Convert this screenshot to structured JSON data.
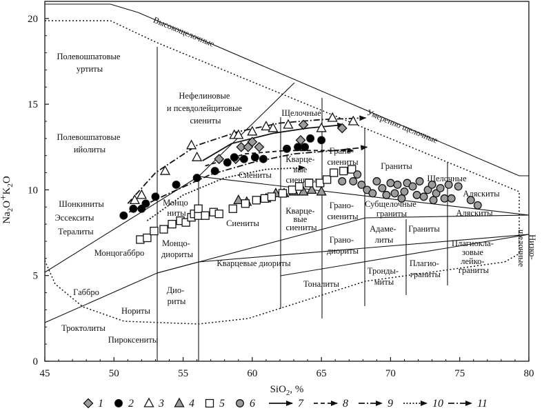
{
  "chart_data": {
    "type": "scatter",
    "xlabel": "SiO",
    "xlabel_sub": "2",
    "xlabel_suffix": ", %",
    "ylabel": {
      "p1": "Na",
      "s1": "2",
      "p2": "O",
      "plus": "+",
      "p3": "K",
      "s2": "2",
      "p4": "O"
    },
    "xlim": [
      45,
      80
    ],
    "ylim": [
      0,
      21
    ],
    "x_ticks": [
      45,
      50,
      55,
      60,
      65,
      70,
      75,
      80
    ],
    "y_ticks": [
      0,
      5,
      10,
      15,
      20
    ],
    "series": [
      {
        "name": "1",
        "marker": "diamond",
        "fill": "#9c9c9c",
        "points": [
          [
            57.6,
            11.8
          ],
          [
            58.8,
            11.8
          ],
          [
            59.2,
            12.5
          ],
          [
            59.7,
            12.5
          ],
          [
            60.0,
            12.8
          ],
          [
            60.5,
            12.5
          ],
          [
            63.5,
            12.9
          ],
          [
            63.7,
            13.8
          ],
          [
            66.5,
            13.6
          ]
        ]
      },
      {
        "name": "2",
        "marker": "circle",
        "fill": "#000000",
        "points": [
          [
            50.7,
            8.5
          ],
          [
            51.4,
            8.9
          ],
          [
            52.0,
            8.9
          ],
          [
            52.3,
            9.2
          ],
          [
            53.0,
            9.6
          ],
          [
            54.5,
            10.3
          ],
          [
            56.0,
            10.7
          ],
          [
            57.3,
            11.1
          ],
          [
            58.2,
            11.6
          ],
          [
            58.7,
            11.9
          ],
          [
            59.4,
            11.8
          ],
          [
            60.2,
            11.9
          ],
          [
            60.8,
            11.8
          ],
          [
            62.5,
            12.4
          ],
          [
            63.3,
            12.5
          ],
          [
            63.8,
            12.5
          ],
          [
            64.2,
            13.0
          ],
          [
            65.0,
            12.9
          ]
        ]
      },
      {
        "name": "3",
        "marker": "triangle",
        "fill": "#ffffff",
        "points": [
          [
            51.5,
            9.4
          ],
          [
            52.0,
            9.7
          ],
          [
            53.7,
            11.1
          ],
          [
            55.6,
            12.6
          ],
          [
            56.0,
            11.9
          ],
          [
            58.7,
            13.2
          ],
          [
            59.0,
            13.2
          ],
          [
            60.0,
            13.4
          ],
          [
            61.0,
            13.7
          ],
          [
            61.5,
            13.6
          ],
          [
            62.6,
            13.8
          ],
          [
            65.0,
            13.6
          ],
          [
            65.8,
            14.2
          ],
          [
            67.3,
            14.0
          ]
        ]
      },
      {
        "name": "4",
        "marker": "triangle",
        "fill": "#9c9c9c",
        "points": [
          [
            59.0,
            9.4
          ],
          [
            59.6,
            9.3
          ],
          [
            61.0,
            9.5
          ],
          [
            61.7,
            9.8
          ],
          [
            62.3,
            9.8
          ],
          [
            63.0,
            9.9
          ],
          [
            63.7,
            9.9
          ],
          [
            64.3,
            10.0
          ],
          [
            65.0,
            9.9
          ]
        ]
      },
      {
        "name": "5",
        "marker": "square",
        "fill": "#ffffff",
        "points": [
          [
            51.9,
            7.1
          ],
          [
            52.4,
            7.2
          ],
          [
            52.9,
            7.6
          ],
          [
            53.6,
            7.7
          ],
          [
            54.2,
            8.0
          ],
          [
            54.8,
            8.2
          ],
          [
            55.2,
            8.1
          ],
          [
            55.6,
            8.4
          ],
          [
            55.8,
            8.6
          ],
          [
            56.1,
            8.5
          ],
          [
            56.1,
            8.9
          ],
          [
            56.6,
            8.5
          ],
          [
            57.2,
            8.7
          ],
          [
            57.6,
            8.6
          ],
          [
            58.6,
            8.9
          ],
          [
            59.5,
            9.2
          ],
          [
            60.3,
            9.4
          ],
          [
            60.9,
            9.5
          ],
          [
            61.4,
            9.6
          ],
          [
            62.2,
            9.8
          ],
          [
            62.9,
            10.0
          ],
          [
            63.4,
            10.2
          ],
          [
            64.1,
            10.4
          ],
          [
            64.9,
            10.4
          ],
          [
            65.4,
            10.6
          ],
          [
            65.9,
            11.0
          ],
          [
            66.6,
            11.1
          ],
          [
            67.2,
            11.2
          ]
        ]
      },
      {
        "name": "6",
        "marker": "circle",
        "fill": "#9c9c9c",
        "points": [
          [
            66.5,
            10.5
          ],
          [
            67.3,
            10.5
          ],
          [
            67.6,
            10.9
          ],
          [
            67.9,
            10.3
          ],
          [
            68.3,
            10.0
          ],
          [
            68.7,
            9.8
          ],
          [
            69.0,
            10.5
          ],
          [
            69.4,
            10.1
          ],
          [
            69.7,
            9.7
          ],
          [
            70.0,
            10.4
          ],
          [
            70.3,
            9.8
          ],
          [
            70.5,
            10.3
          ],
          [
            70.8,
            9.5
          ],
          [
            71.0,
            9.9
          ],
          [
            71.2,
            10.4
          ],
          [
            71.6,
            10.2
          ],
          [
            71.9,
            9.7
          ],
          [
            72.1,
            10.5
          ],
          [
            72.4,
            9.6
          ],
          [
            72.7,
            10.0
          ],
          [
            73.0,
            10.3
          ],
          [
            73.1,
            9.4
          ],
          [
            73.3,
            9.8
          ],
          [
            73.6,
            10.1
          ],
          [
            73.9,
            9.5
          ],
          [
            74.2,
            10.3
          ],
          [
            74.4,
            9.5
          ],
          [
            74.9,
            10.2
          ],
          [
            75.8,
            9.4
          ],
          [
            76.3,
            9.1
          ]
        ]
      }
    ],
    "trends": [
      {
        "name": "7",
        "style": "solid",
        "points": [
          [
            56.4,
            11.7
          ],
          [
            58.5,
            12.7
          ],
          [
            61.5,
            13.3
          ],
          [
            64.0,
            13.6
          ],
          [
            66.6,
            13.8
          ]
        ]
      },
      {
        "name": "8",
        "style": "dashed",
        "points": [
          [
            56.6,
            11.4
          ],
          [
            59.5,
            12.1
          ],
          [
            62.5,
            12.3
          ],
          [
            65.0,
            12.3
          ],
          [
            67.3,
            12.3
          ]
        ]
      },
      {
        "name": "9",
        "style": "dashdot",
        "points": [
          [
            51.0,
            9.2
          ],
          [
            53.0,
            11.0
          ],
          [
            56.0,
            12.6
          ],
          [
            59.0,
            13.4
          ],
          [
            62.0,
            13.9
          ],
          [
            65.0,
            14.1
          ],
          [
            68.2,
            14.2
          ]
        ]
      },
      {
        "name": "10",
        "style": "dotted",
        "points": [
          [
            52.4,
            8.2
          ],
          [
            55.0,
            9.7
          ],
          [
            58.0,
            10.7
          ],
          [
            61.0,
            11.2
          ],
          [
            63.8,
            11.3
          ]
        ]
      },
      {
        "name": "11",
        "style": "dashdot",
        "points": [
          [
            51.1,
            8.7
          ],
          [
            54.0,
            9.8
          ],
          [
            57.0,
            10.9
          ],
          [
            60.0,
            11.6
          ],
          [
            63.0,
            12.1
          ],
          [
            66.0,
            12.3
          ],
          [
            68.3,
            12.5
          ]
        ]
      }
    ],
    "field_labels": {
      "polevosh_urtity": [
        "Полевошпатовые",
        "уртиты"
      ],
      "polevosh_ijolity": [
        "Полевошпатовые",
        "ийолиты"
      ],
      "nefelinovye": [
        "Нефелиновые",
        "и псевдолейцитовые",
        "сиениты"
      ],
      "vysokoshchel": "Высокощелочные",
      "umerenno": "Умеренно щелочные",
      "nizkoshchel": [
        "Низко-",
        "щелочные"
      ],
      "shchel_a": "Щелочные",
      "shchel_b": "Щелочные",
      "kvarts_sien_a": [
        "Кварце-",
        "вые",
        "сиениты"
      ],
      "kvarts_sien_b": [
        "Кварце-",
        "вые",
        "сиениты"
      ],
      "granosien_a": [
        "Грано-",
        "сиениты"
      ],
      "granosien_b": [
        "Грано-",
        "сиениты"
      ],
      "granity": "Граниты",
      "alyaskity_a": "Аляскиты",
      "alyaskity_b": "Аляскиты",
      "sienity_a": "Сиениты",
      "sienity_b": "Сиениты",
      "subshchel": [
        "Субщелочные",
        "граниты"
      ],
      "shonkinity": "Шонкиниты",
      "essexity": "Эссекситы",
      "terality": "Тералиты",
      "monzonity": [
        "Монцо",
        "ниты"
      ],
      "monzogabbro": "Монцогаббро",
      "monzodiority": [
        "Монцо-",
        "диориты"
      ],
      "kvarts_diority": "Кварцевые диориты",
      "granodiority": [
        "Грано-",
        "диориты"
      ],
      "adamelity": [
        "Адаме-",
        "литы"
      ],
      "granity_b": "Граниты",
      "plagiogranity": [
        "Плагио-",
        "граниты"
      ],
      "plagioklaz": [
        "Плагиокла-",
        "зовые",
        "лейко-",
        "граниты"
      ],
      "tonality": "Тоналиты",
      "trondyemity": [
        "Тронды-",
        "миты"
      ],
      "gabbro": "Габбро",
      "diority": [
        "Дио-",
        "риты"
      ],
      "nority": "Нориты",
      "troktolity": "Троктолиты",
      "piroksenity": "Пироксениты"
    },
    "legend": [
      "1",
      "2",
      "3",
      "4",
      "5",
      "6",
      "7",
      "8",
      "9",
      "10",
      "11"
    ],
    "legend_position": "bottom"
  }
}
